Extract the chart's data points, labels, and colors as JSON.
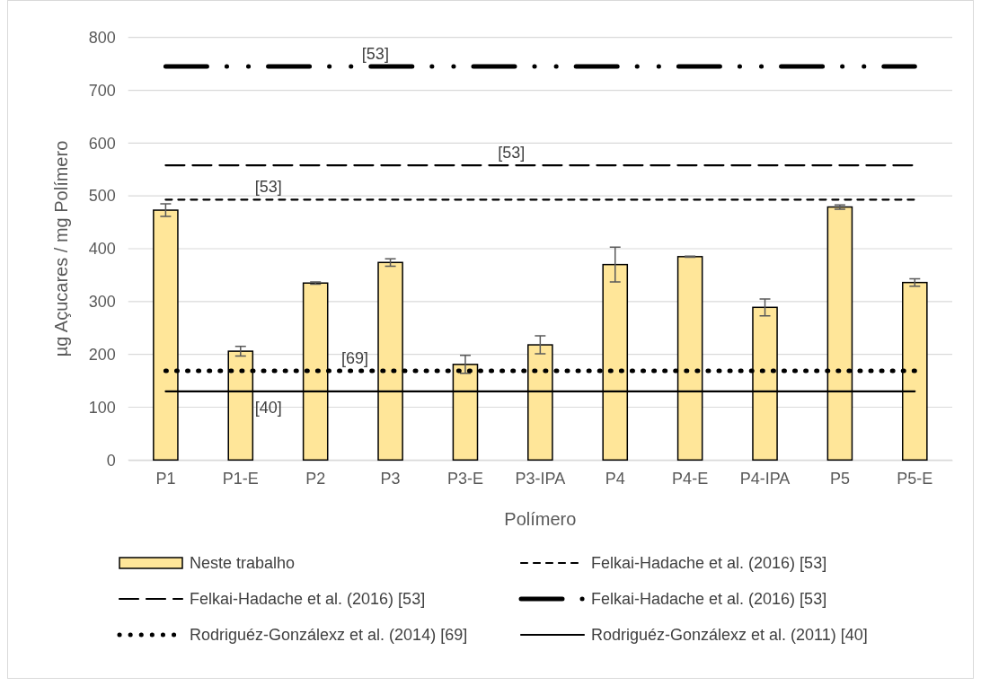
{
  "chart_data": {
    "type": "bar",
    "xlabel": "Polímero",
    "ylabel": "µg Açucares / mg Polímero",
    "categories": [
      "P1",
      "P1-E",
      "P2",
      "P3",
      "P3-E",
      "P3-IPA",
      "P4",
      "P4-E",
      "P4-IPA",
      "P5",
      "P5-E"
    ],
    "series": [
      {
        "name": "Neste trabalho",
        "type": "bar",
        "color": "#ffe699",
        "values": [
          473,
          206,
          335,
          374,
          181,
          218,
          370,
          385,
          289,
          479,
          336
        ],
        "errors": [
          12,
          9,
          2,
          7,
          17,
          17,
          33,
          1,
          16,
          4,
          7
        ]
      },
      {
        "name": "Felkai-Hadache et al. (2016) [53]",
        "type": "line",
        "color": "#000000",
        "line_style": "dashed",
        "values": [
          493,
          493,
          493,
          493,
          493,
          493,
          493,
          493,
          493,
          493,
          493
        ]
      },
      {
        "name": "Felkai-Hadache et al. (2016) [53]",
        "type": "line",
        "color": "#000000",
        "line_style": "longdash",
        "values": [
          558,
          558,
          558,
          558,
          558,
          558,
          558,
          558,
          558,
          558,
          558
        ]
      },
      {
        "name": "Felkai-Hadache et al. (2016) [53]",
        "type": "line",
        "color": "#000000",
        "line_style": "dashdotdot",
        "values": [
          745,
          745,
          745,
          745,
          745,
          745,
          745,
          745,
          745,
          745,
          745
        ]
      },
      {
        "name": "Rodriguéz-Gonzálexz et al. (2014) [69]",
        "type": "line",
        "color": "#000000",
        "line_style": "dotted",
        "values": [
          169,
          169,
          169,
          169,
          169,
          169,
          169,
          169,
          169,
          169,
          169
        ]
      },
      {
        "name": "Rodriguéz-Gonzálexz et al. (2011) [40]",
        "type": "line",
        "color": "#000000",
        "line_style": "solid",
        "values": [
          130,
          130,
          130,
          130,
          130,
          130,
          130,
          130,
          130,
          130,
          130
        ]
      }
    ],
    "annotations": [
      {
        "text": "[53]",
        "y": 745
      },
      {
        "text": "[53]",
        "y": 558
      },
      {
        "text": "[53]",
        "y": 493
      },
      {
        "text": "[69]",
        "y": 169
      },
      {
        "text": "[40]",
        "y": 130
      }
    ],
    "ylim": [
      0,
      800
    ],
    "yticks": [
      0,
      100,
      200,
      300,
      400,
      500,
      600,
      700,
      800
    ],
    "grid": "y",
    "legend": "bottom"
  }
}
